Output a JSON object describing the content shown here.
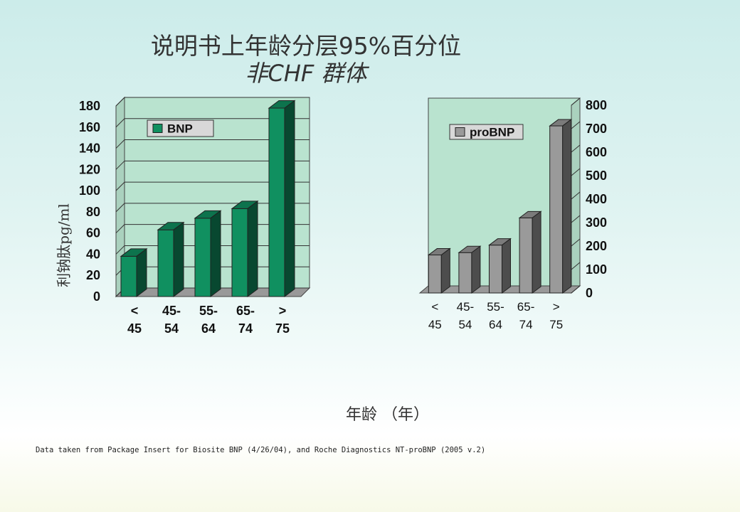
{
  "title": "说明书上年龄分层95%百分位",
  "subtitle": "非CHF 群体",
  "ylabel": "利钠肽pg/ml",
  "xlabel": "年龄 （年）",
  "footnote": "Data taken from Package Insert for Biosite BNP (4/26/04),  and Roche Diagnostics NT-proBNP (2005 v.2)",
  "colors": {
    "bnp": "#109060",
    "probnp": "#9a9a9a",
    "plot_bg": "#b9e3cf",
    "walls": "#999999"
  },
  "chart_data": [
    {
      "type": "bar",
      "title": "",
      "categories": [
        [
          "<",
          "45"
        ],
        [
          "45-",
          "54"
        ],
        [
          "55-",
          "64"
        ],
        [
          "65-",
          "74"
        ],
        [
          ">",
          "75"
        ]
      ],
      "series": [
        {
          "name": "BNP",
          "values": [
            38,
            63,
            74,
            83,
            178
          ]
        }
      ],
      "ylim": [
        0,
        180
      ],
      "yticks": [
        0,
        20,
        40,
        60,
        80,
        100,
        120,
        140,
        160,
        180
      ],
      "axis_side": "left",
      "legend": "top-left",
      "grid": true
    },
    {
      "type": "bar",
      "title": "",
      "categories": [
        [
          "<",
          "45"
        ],
        [
          "45-",
          "54"
        ],
        [
          "55-",
          "64"
        ],
        [
          "65-",
          "74"
        ],
        [
          ">",
          "75"
        ]
      ],
      "series": [
        {
          "name": "proBNP",
          "values": [
            162,
            172,
            204,
            320,
            712
          ]
        }
      ],
      "ylim": [
        0,
        800
      ],
      "yticks": [
        0,
        100,
        200,
        300,
        400,
        500,
        600,
        700,
        800
      ],
      "axis_side": "right",
      "legend": "top-left",
      "grid": true
    }
  ]
}
